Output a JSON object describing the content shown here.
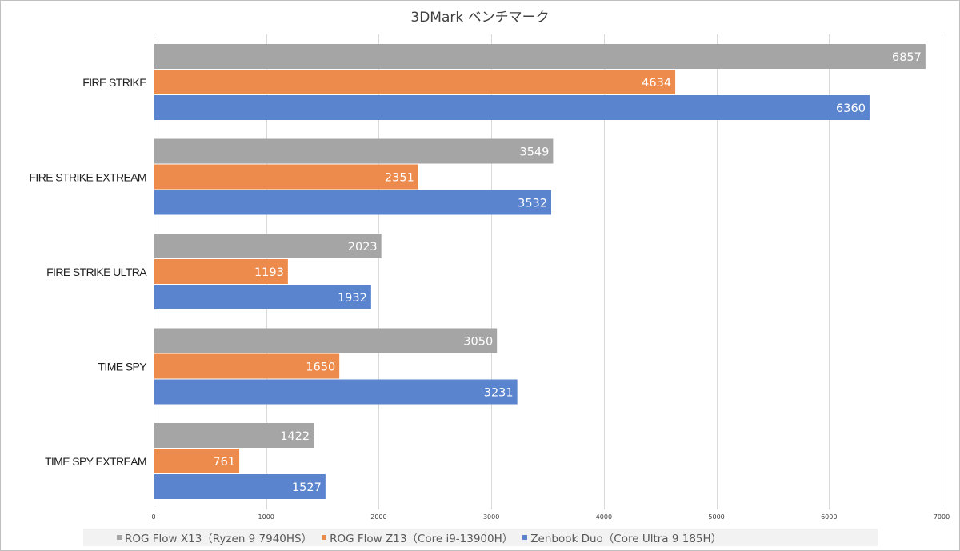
{
  "chart_data": {
    "type": "bar",
    "orientation": "horizontal",
    "title": "3DMark ベンチマーク",
    "categories": [
      "FIRE STRIKE",
      "FIRE STRIKE EXTREAM",
      "FIRE STRIKE ULTRA",
      "TIME SPY",
      "TIME SPY EXTREAM"
    ],
    "series": [
      {
        "name": "ROG Flow X13（Ryzen 9 7940HS）",
        "color": "#a5a5a5",
        "values": [
          6857,
          3549,
          2023,
          3050,
          1422
        ]
      },
      {
        "name": "ROG Flow Z13（Core i9-13900H）",
        "color": "#ed8b4c",
        "values": [
          4634,
          2351,
          1193,
          1650,
          761
        ]
      },
      {
        "name": "Zenbook Duo（Core Ultra 9 185H）",
        "color": "#5b84cf",
        "values": [
          6360,
          3532,
          1932,
          3231,
          1527
        ]
      }
    ],
    "xlim": [
      0,
      7000
    ],
    "xticks": [
      0,
      1000,
      2000,
      3000,
      4000,
      5000,
      6000,
      7000
    ],
    "grid": true,
    "legend_position": "bottom",
    "data_labels": true
  }
}
